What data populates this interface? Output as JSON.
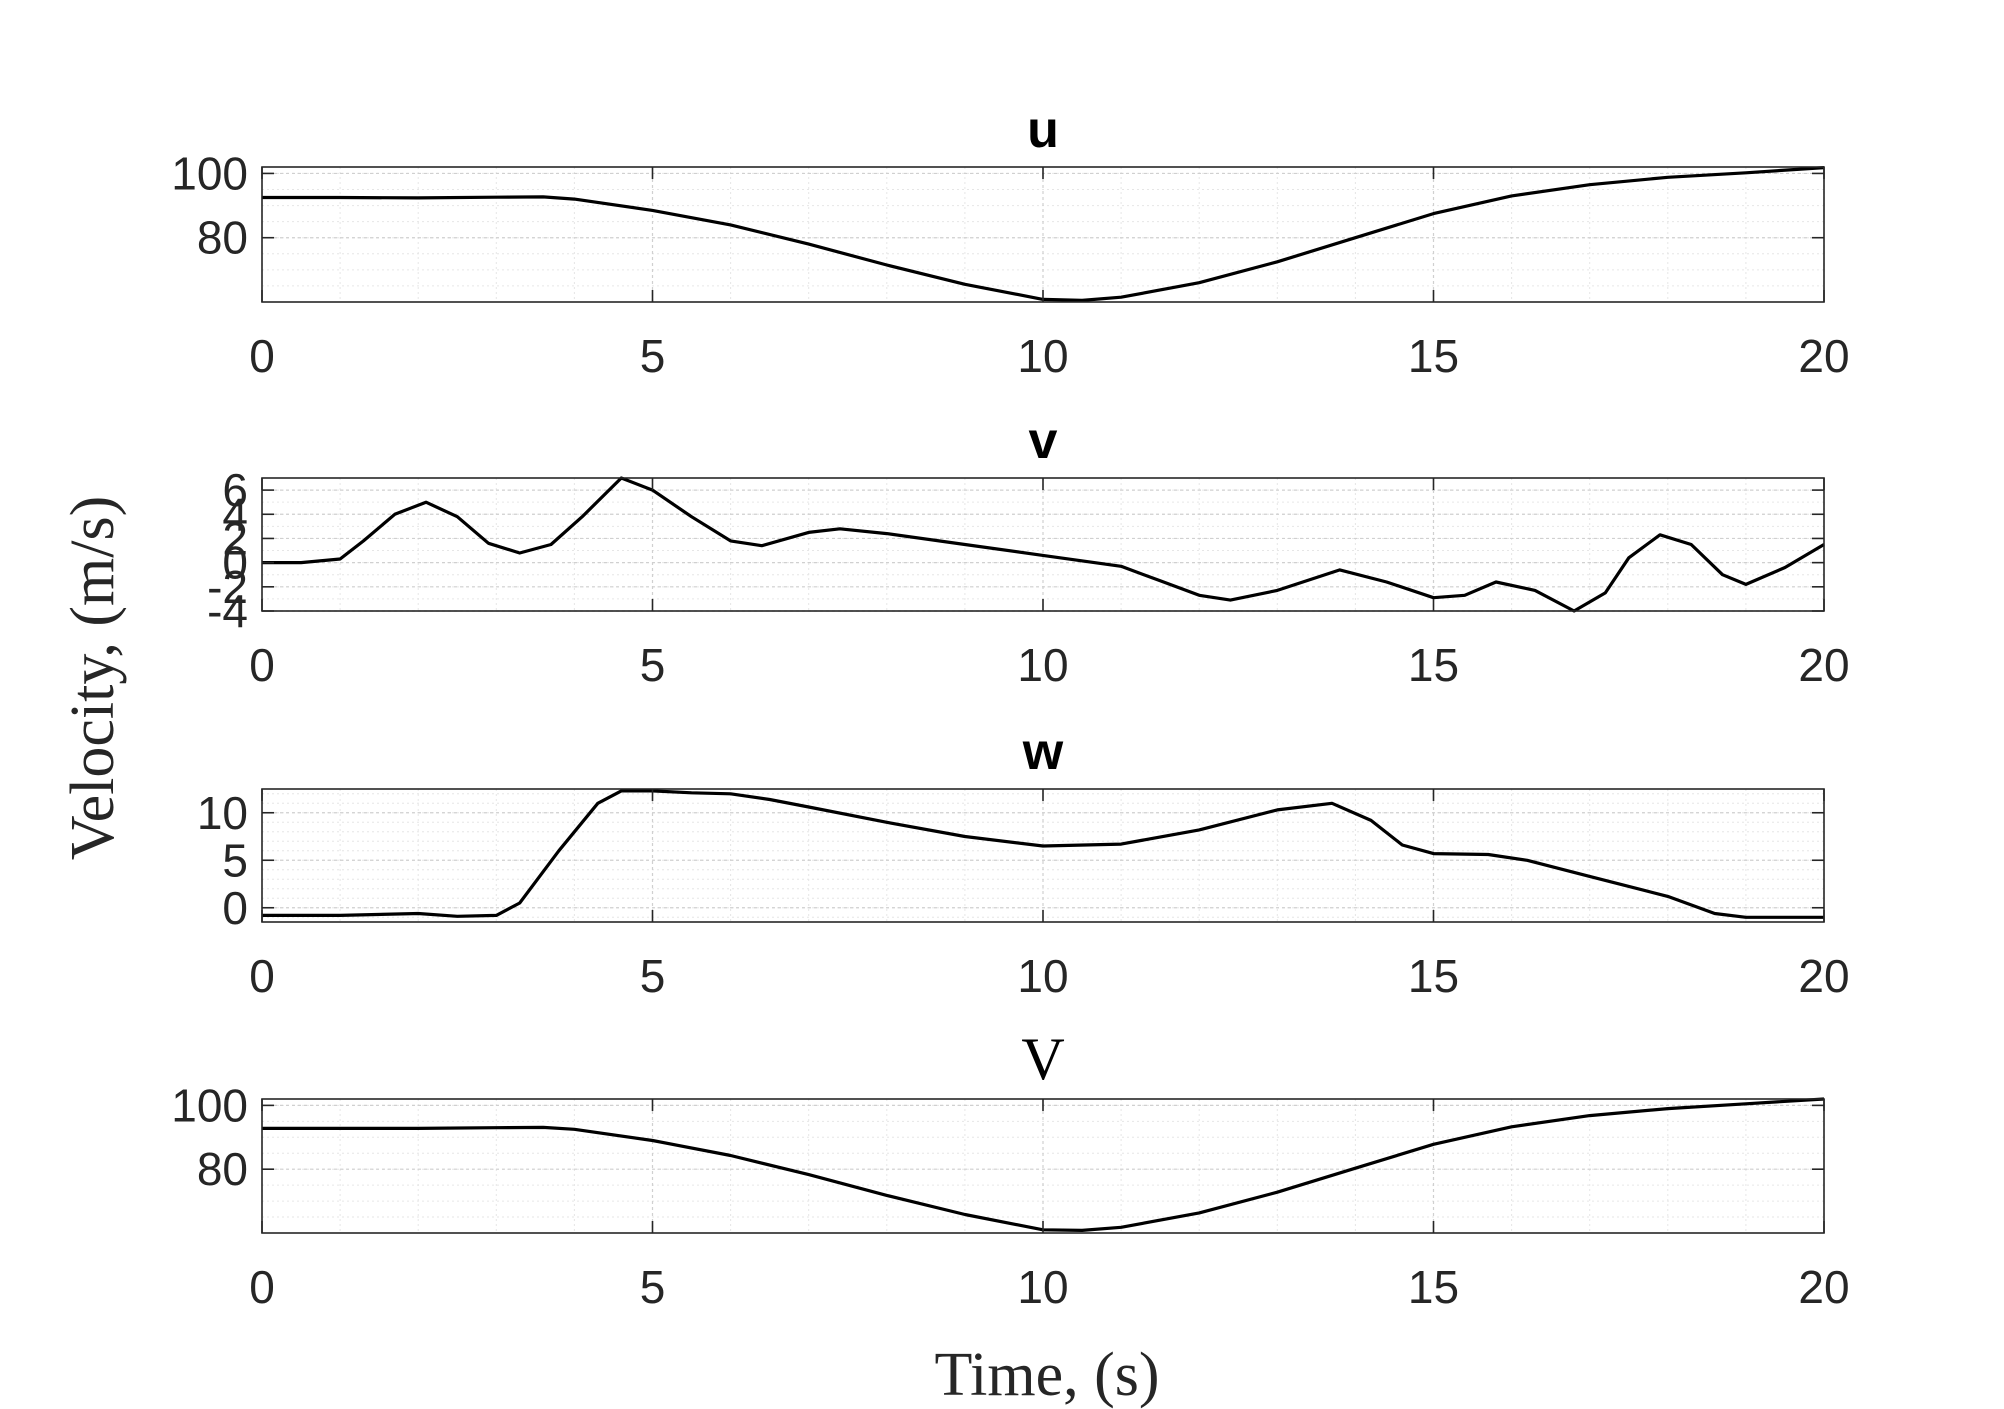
{
  "ylabel": "Velocity, (m/s)",
  "xlabel": "Time, (s)",
  "chart_data": [
    {
      "type": "line",
      "title": "u",
      "title_style": "sans-bold",
      "xlim": [
        0,
        20
      ],
      "ylim": [
        60,
        102
      ],
      "xticks": [
        0,
        5,
        10,
        15,
        20
      ],
      "yticks": [
        80,
        100
      ],
      "grid": true,
      "x": [
        0,
        1,
        2,
        3,
        3.6,
        4,
        5,
        6,
        7,
        8,
        9,
        10,
        10.5,
        11,
        12,
        13,
        14,
        15,
        16,
        17,
        18,
        19,
        20
      ],
      "series": [
        {
          "values": [
            92.5,
            92.5,
            92.4,
            92.6,
            92.7,
            92.0,
            88.5,
            84.0,
            78.0,
            71.5,
            65.5,
            60.8,
            60.5,
            61.5,
            66.0,
            72.5,
            80.0,
            87.5,
            93.0,
            96.5,
            98.8,
            100.2,
            101.8
          ]
        }
      ]
    },
    {
      "type": "line",
      "title": "v",
      "title_style": "sans-bold",
      "xlim": [
        0,
        20
      ],
      "ylim": [
        -4,
        7
      ],
      "xticks": [
        0,
        5,
        10,
        15,
        20
      ],
      "yticks": [
        -4,
        -2,
        0,
        2,
        4,
        6
      ],
      "ytick_labels": [
        "-4",
        "-2",
        "0",
        "2",
        "4",
        "6"
      ],
      "grid": true,
      "x": [
        0,
        0.5,
        1.0,
        1.3,
        1.7,
        2.1,
        2.5,
        2.9,
        3.3,
        3.7,
        4.1,
        4.6,
        5.0,
        5.5,
        6.0,
        6.4,
        7.0,
        7.4,
        8.0,
        9.0,
        10.0,
        11.0,
        11.5,
        12.0,
        12.4,
        13.0,
        13.8,
        14.4,
        15.0,
        15.4,
        15.8,
        16.3,
        16.8,
        17.2,
        17.5,
        17.9,
        18.3,
        18.7,
        19.0,
        19.5,
        20.0
      ],
      "series": [
        {
          "values": [
            0.0,
            0.0,
            0.3,
            1.8,
            4.0,
            5.0,
            3.8,
            1.6,
            0.8,
            1.5,
            3.8,
            7.0,
            6.0,
            3.8,
            1.8,
            1.4,
            2.5,
            2.8,
            2.4,
            1.5,
            0.6,
            -0.3,
            -1.5,
            -2.7,
            -3.1,
            -2.3,
            -0.6,
            -1.6,
            -2.9,
            -2.7,
            -1.6,
            -2.3,
            -4.0,
            -2.5,
            0.4,
            2.3,
            1.5,
            -1.0,
            -1.8,
            -0.4,
            1.5
          ]
        }
      ]
    },
    {
      "type": "line",
      "title": "w",
      "title_style": "sans-bold",
      "xlim": [
        0,
        20
      ],
      "ylim": [
        -1.5,
        12.5
      ],
      "xticks": [
        0,
        5,
        10,
        15,
        20
      ],
      "yticks": [
        0,
        5,
        10
      ],
      "grid": true,
      "x": [
        0,
        1,
        2,
        2.5,
        3,
        3.3,
        3.8,
        4.3,
        4.6,
        5,
        5.5,
        6,
        6.5,
        7,
        8,
        9,
        10,
        11,
        12,
        13,
        13.7,
        14.2,
        14.6,
        15,
        15.7,
        16.2,
        17,
        18,
        18.6,
        19,
        20
      ],
      "series": [
        {
          "values": [
            -0.8,
            -0.8,
            -0.6,
            -0.9,
            -0.8,
            0.5,
            6.0,
            11.0,
            12.3,
            12.3,
            12.1,
            12.0,
            11.4,
            10.6,
            9.0,
            7.5,
            6.5,
            6.7,
            8.2,
            10.3,
            11.0,
            9.2,
            6.6,
            5.7,
            5.6,
            5.0,
            3.3,
            1.2,
            -0.6,
            -1.0,
            -1.0
          ]
        }
      ]
    },
    {
      "type": "line",
      "title": "V",
      "title_style": "serif",
      "xlim": [
        0,
        20
      ],
      "ylim": [
        60,
        102
      ],
      "xticks": [
        0,
        5,
        10,
        15,
        20
      ],
      "yticks": [
        80,
        100
      ],
      "grid": true,
      "x": [
        0,
        1,
        2,
        3,
        3.6,
        4,
        5,
        6,
        7,
        8,
        9,
        10,
        10.5,
        11,
        12,
        13,
        14,
        15,
        16,
        17,
        18,
        19,
        20
      ],
      "series": [
        {
          "values": [
            92.8,
            92.8,
            92.8,
            93.0,
            93.1,
            92.5,
            89.0,
            84.3,
            78.3,
            71.8,
            65.8,
            61.0,
            60.8,
            61.8,
            66.3,
            72.8,
            80.3,
            87.8,
            93.3,
            96.8,
            99.0,
            100.5,
            102.0
          ]
        }
      ]
    }
  ]
}
